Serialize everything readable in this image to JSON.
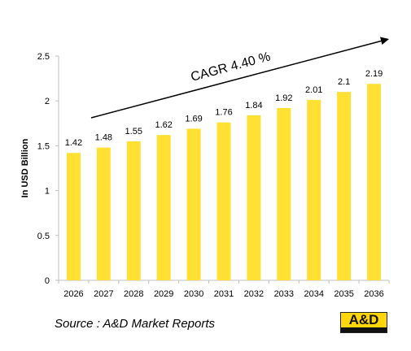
{
  "colors": {
    "bar": "#ffe033",
    "axis": "#bfbfbf",
    "text": "#000000",
    "logo_bg": "#ffd60a"
  },
  "chart_data": {
    "type": "bar",
    "categories": [
      "2026",
      "2027",
      "2028",
      "2029",
      "2030",
      "2031",
      "2032",
      "2033",
      "2034",
      "2035",
      "2036"
    ],
    "values": [
      1.42,
      1.48,
      1.55,
      1.62,
      1.69,
      1.76,
      1.84,
      1.92,
      2.01,
      2.1,
      2.19
    ],
    "value_labels": [
      "1.42",
      "1.48",
      "1.55",
      "1.62",
      "1.69",
      "1.76",
      "1.84",
      "1.92",
      "2.01",
      "2.1",
      "2.19"
    ],
    "ylabel": "In USD Billion",
    "ylim": [
      0,
      2.5
    ],
    "yticks": [
      "0",
      "0.5",
      "1",
      "1.5",
      "2",
      "2.5"
    ],
    "grid": false,
    "annotation": "CAGR  4.40 %",
    "trend_arrow": true
  },
  "footer": {
    "source": "Source : A&D Market Reports"
  },
  "logo": {
    "text": "A&D",
    "icon": "brand-logo"
  }
}
